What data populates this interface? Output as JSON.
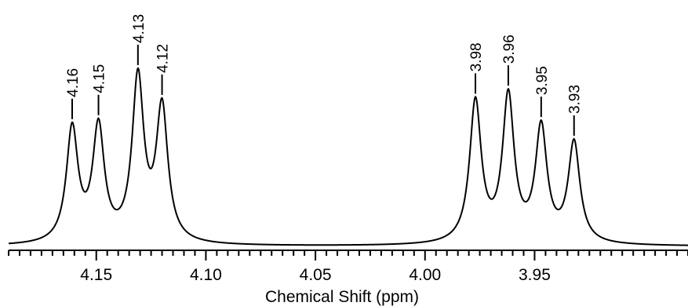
{
  "chart_data": {
    "type": "line",
    "title": "",
    "xlabel": "Chemical Shift (ppm)",
    "ylabel": "",
    "xlim": [
      4.19,
      3.88
    ],
    "x_reversed": true,
    "ylim": [
      0,
      1
    ],
    "grid": false,
    "legend": "none",
    "x_ticks": [
      {
        "value": 4.15,
        "label": "4.15"
      },
      {
        "value": 4.1,
        "label": "4.10"
      },
      {
        "value": 4.05,
        "label": "4.05"
      },
      {
        "value": 4.0,
        "label": "4.00"
      },
      {
        "value": 3.95,
        "label": "3.95"
      }
    ],
    "x_minor_tick_step": 0.005,
    "peaks": [
      {
        "label": "4.16",
        "shift": 4.161,
        "height": 0.58
      },
      {
        "label": "4.15",
        "shift": 4.149,
        "height": 0.58
      },
      {
        "label": "4.13",
        "shift": 4.131,
        "height": 0.83
      },
      {
        "label": "4.12",
        "shift": 4.12,
        "height": 0.68
      },
      {
        "label": "3.98",
        "shift": 3.977,
        "height": 0.72
      },
      {
        "label": "3.96",
        "shift": 3.962,
        "height": 0.74
      },
      {
        "label": "3.95",
        "shift": 3.947,
        "height": 0.58
      },
      {
        "label": "3.93",
        "shift": 3.932,
        "height": 0.51
      }
    ],
    "peak_halfwidth_ppm": 0.0032,
    "line_color": "#000000"
  }
}
